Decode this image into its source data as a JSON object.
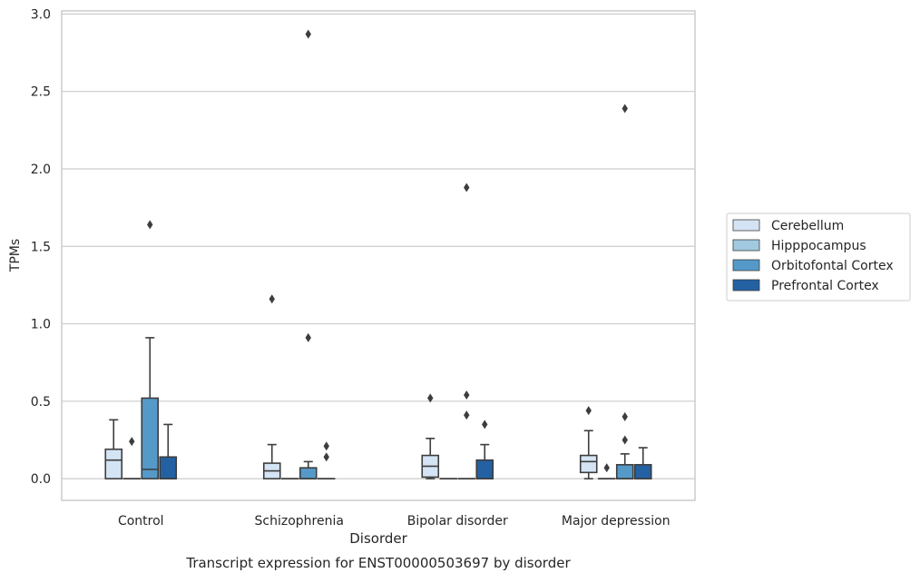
{
  "chart_data": {
    "type": "boxplot",
    "caption": "Transcript expression for ENST00000503697 by disorder",
    "xlabel": "Disorder",
    "ylabel": "TPMs",
    "ylim": [
      -0.14,
      3.02
    ],
    "yticks": [
      "0.0",
      "0.5",
      "1.0",
      "1.5",
      "2.0",
      "2.5",
      "3.0"
    ],
    "ytick_values": [
      0,
      0.5,
      1.0,
      1.5,
      2.0,
      2.5,
      3.0
    ],
    "grid": "horizontal",
    "legend_position": "right",
    "categories": [
      "Control",
      "Schizophrenia",
      "Bipolar disorder",
      "Major depression"
    ],
    "series": [
      {
        "name": "Cerebellum",
        "color": "#d4e4f4",
        "boxes": [
          {
            "whisker_low": 0.0,
            "q1": 0.0,
            "median": 0.12,
            "q3": 0.19,
            "whisker_high": 0.38,
            "outliers": []
          },
          {
            "whisker_low": 0.0,
            "q1": 0.0,
            "median": 0.05,
            "q3": 0.1,
            "whisker_high": 0.22,
            "outliers": [
              1.16
            ]
          },
          {
            "whisker_low": 0.0,
            "q1": 0.01,
            "median": 0.08,
            "q3": 0.15,
            "whisker_high": 0.26,
            "outliers": [
              0.52
            ]
          },
          {
            "whisker_low": 0.0,
            "q1": 0.04,
            "median": 0.11,
            "q3": 0.15,
            "whisker_high": 0.31,
            "outliers": [
              0.44
            ]
          }
        ]
      },
      {
        "name": "Hipppocampus",
        "color": "#a1c9e0",
        "boxes": [
          {
            "whisker_low": 0.0,
            "q1": 0.0,
            "median": 0.0,
            "q3": 0.0,
            "whisker_high": 0.0,
            "outliers": [
              0.24
            ]
          },
          {
            "whisker_low": 0.0,
            "q1": 0.0,
            "median": 0.0,
            "q3": 0.0,
            "whisker_high": 0.0,
            "outliers": []
          },
          {
            "whisker_low": 0.0,
            "q1": 0.0,
            "median": 0.0,
            "q3": 0.0,
            "whisker_high": 0.0,
            "outliers": []
          },
          {
            "whisker_low": 0.0,
            "q1": 0.0,
            "median": 0.0,
            "q3": 0.0,
            "whisker_high": 0.0,
            "outliers": [
              0.07
            ]
          }
        ]
      },
      {
        "name": "Orbitofontal Cortex",
        "color": "#5599c8",
        "boxes": [
          {
            "whisker_low": 0.0,
            "q1": 0.0,
            "median": 0.06,
            "q3": 0.52,
            "whisker_high": 0.91,
            "outliers": [
              1.64
            ]
          },
          {
            "whisker_low": 0.0,
            "q1": 0.0,
            "median": 0.0,
            "q3": 0.07,
            "whisker_high": 0.11,
            "outliers": [
              0.91,
              2.87
            ]
          },
          {
            "whisker_low": 0.0,
            "q1": 0.0,
            "median": 0.0,
            "q3": 0.0,
            "whisker_high": 0.0,
            "outliers": [
              0.41,
              0.54,
              1.88
            ]
          },
          {
            "whisker_low": 0.0,
            "q1": 0.0,
            "median": 0.0,
            "q3": 0.09,
            "whisker_high": 0.16,
            "outliers": [
              0.25,
              0.4,
              2.39
            ]
          }
        ]
      },
      {
        "name": "Prefrontal Cortex",
        "color": "#2361a3",
        "boxes": [
          {
            "whisker_low": 0.0,
            "q1": 0.0,
            "median": 0.0,
            "q3": 0.14,
            "whisker_high": 0.35,
            "outliers": []
          },
          {
            "whisker_low": 0.0,
            "q1": 0.0,
            "median": 0.0,
            "q3": 0.0,
            "whisker_high": 0.0,
            "outliers": [
              0.14,
              0.21
            ]
          },
          {
            "whisker_low": 0.0,
            "q1": 0.0,
            "median": 0.0,
            "q3": 0.12,
            "whisker_high": 0.22,
            "outliers": [
              0.35
            ]
          },
          {
            "whisker_low": 0.0,
            "q1": 0.0,
            "median": 0.0,
            "q3": 0.09,
            "whisker_high": 0.2,
            "outliers": []
          }
        ]
      }
    ]
  }
}
